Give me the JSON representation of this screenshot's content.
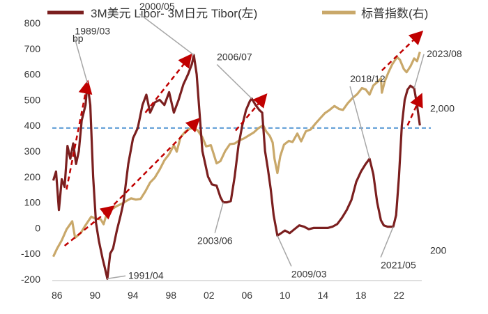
{
  "chart_data": {
    "type": "line",
    "legend": {
      "position": "top",
      "items": [
        {
          "label": "3M美元 Libor- 3M日元 Tibor(左)",
          "color": "#7b1f1f"
        },
        {
          "label": "标普指数(右)",
          "color": "#c9a86a"
        }
      ]
    },
    "left_axis": {
      "unit": "bp",
      "ticks": [
        "800",
        "700",
        "600",
        "500",
        "400",
        "300",
        "200",
        "100",
        "0",
        "-100",
        "-200"
      ],
      "range": [
        -200,
        800
      ]
    },
    "right_axis": {
      "scale": "log",
      "ticks": [
        "2,000",
        "200"
      ],
      "range": [
        125,
        8000
      ]
    },
    "x_axis": {
      "ticks": [
        "86",
        "90",
        "94",
        "98",
        "02",
        "06",
        "10",
        "14",
        "18",
        "22"
      ],
      "range": [
        1985.5,
        2024.4
      ]
    },
    "reference_line": {
      "left_value": 390,
      "color": "#5b9bd5"
    },
    "annotations": [
      {
        "label": "1989/03",
        "x": 1989.2,
        "y": 565
      },
      {
        "label": "1991/04",
        "x": 1991.3,
        "y": -198
      },
      {
        "label": "2000/05",
        "x": 2000.4,
        "y": 675
      },
      {
        "label": "2003/06",
        "x": 2003.5,
        "y": 100
      },
      {
        "label": "2006/07",
        "x": 2006.5,
        "y": 505
      },
      {
        "label": "2009/03",
        "x": 2009.2,
        "y": -30
      },
      {
        "label": "2018/12",
        "x": 2018.9,
        "y": 270
      },
      {
        "label": "2021/05",
        "x": 2021.4,
        "y": 5
      },
      {
        "label": "2023/08",
        "x": 2023.6,
        "y": 545
      }
    ],
    "series": [
      {
        "name": "3M美元 Libor- 3M日元 Tibor(左)",
        "axis": "left",
        "color": "#7b1f1f",
        "points": [
          [
            1985.6,
            185
          ],
          [
            1985.9,
            220
          ],
          [
            1986.2,
            70
          ],
          [
            1986.5,
            190
          ],
          [
            1986.8,
            160
          ],
          [
            1987.1,
            320
          ],
          [
            1987.4,
            270
          ],
          [
            1987.7,
            330
          ],
          [
            1988.0,
            250
          ],
          [
            1988.3,
            300
          ],
          [
            1988.6,
            420
          ],
          [
            1989.0,
            480
          ],
          [
            1989.2,
            565
          ],
          [
            1989.5,
            480
          ],
          [
            1989.8,
            200
          ],
          [
            1990.1,
            20
          ],
          [
            1990.4,
            -50
          ],
          [
            1990.8,
            -120
          ],
          [
            1991.0,
            -150
          ],
          [
            1991.3,
            -198
          ],
          [
            1991.6,
            -100
          ],
          [
            1991.9,
            -80
          ],
          [
            1992.3,
            -10
          ],
          [
            1992.7,
            50
          ],
          [
            1993.0,
            100
          ],
          [
            1993.5,
            250
          ],
          [
            1994.0,
            350
          ],
          [
            1994.5,
            390
          ],
          [
            1995.0,
            480
          ],
          [
            1995.4,
            520
          ],
          [
            1995.8,
            450
          ],
          [
            1996.3,
            490
          ],
          [
            1996.8,
            500
          ],
          [
            1997.3,
            480
          ],
          [
            1997.8,
            530
          ],
          [
            1998.3,
            450
          ],
          [
            1998.8,
            500
          ],
          [
            1999.3,
            560
          ],
          [
            1999.8,
            600
          ],
          [
            2000.2,
            640
          ],
          [
            2000.4,
            675
          ],
          [
            2000.7,
            600
          ],
          [
            2001.0,
            450
          ],
          [
            2001.3,
            300
          ],
          [
            2001.6,
            250
          ],
          [
            2001.9,
            200
          ],
          [
            2002.3,
            170
          ],
          [
            2002.8,
            165
          ],
          [
            2003.2,
            120
          ],
          [
            2003.5,
            100
          ],
          [
            2003.9,
            100
          ],
          [
            2004.3,
            105
          ],
          [
            2004.7,
            200
          ],
          [
            2005.1,
            320
          ],
          [
            2005.5,
            400
          ],
          [
            2005.9,
            460
          ],
          [
            2006.3,
            495
          ],
          [
            2006.5,
            505
          ],
          [
            2006.9,
            480
          ],
          [
            2007.3,
            460
          ],
          [
            2007.6,
            450
          ],
          [
            2007.9,
            300
          ],
          [
            2008.2,
            230
          ],
          [
            2008.5,
            150
          ],
          [
            2008.8,
            50
          ],
          [
            2009.2,
            -30
          ],
          [
            2009.6,
            -20
          ],
          [
            2010.0,
            -10
          ],
          [
            2010.5,
            -20
          ],
          [
            2011.0,
            -5
          ],
          [
            2011.5,
            10
          ],
          [
            2012.0,
            5
          ],
          [
            2012.5,
            -5
          ],
          [
            2013.0,
            0
          ],
          [
            2013.5,
            0
          ],
          [
            2014.0,
            0
          ],
          [
            2014.5,
            0
          ],
          [
            2015.0,
            5
          ],
          [
            2015.5,
            15
          ],
          [
            2016.0,
            40
          ],
          [
            2016.5,
            70
          ],
          [
            2017.0,
            110
          ],
          [
            2017.5,
            180
          ],
          [
            2018.0,
            220
          ],
          [
            2018.5,
            250
          ],
          [
            2018.9,
            270
          ],
          [
            2019.3,
            210
          ],
          [
            2019.7,
            100
          ],
          [
            2020.1,
            30
          ],
          [
            2020.4,
            10
          ],
          [
            2020.8,
            5
          ],
          [
            2021.1,
            5
          ],
          [
            2021.4,
            5
          ],
          [
            2021.7,
            50
          ],
          [
            2022.0,
            200
          ],
          [
            2022.3,
            400
          ],
          [
            2022.6,
            500
          ],
          [
            2022.9,
            540
          ],
          [
            2023.2,
            555
          ],
          [
            2023.6,
            545
          ],
          [
            2023.9,
            480
          ],
          [
            2024.2,
            400
          ]
        ]
      },
      {
        "name": "标普指数(右)",
        "axis": "right",
        "color": "#c9a86a",
        "points": [
          [
            1985.6,
            180
          ],
          [
            1986.0,
            205
          ],
          [
            1986.5,
            235
          ],
          [
            1987.0,
            280
          ],
          [
            1987.6,
            320
          ],
          [
            1987.9,
            245
          ],
          [
            1988.5,
            265
          ],
          [
            1989.0,
            300
          ],
          [
            1989.6,
            345
          ],
          [
            1990.0,
            335
          ],
          [
            1990.6,
            330
          ],
          [
            1990.9,
            305
          ],
          [
            1991.3,
            375
          ],
          [
            1991.8,
            390
          ],
          [
            1992.3,
            410
          ],
          [
            1992.8,
            425
          ],
          [
            1993.3,
            445
          ],
          [
            1993.8,
            465
          ],
          [
            1994.3,
            455
          ],
          [
            1994.8,
            460
          ],
          [
            1995.3,
            520
          ],
          [
            1995.8,
            600
          ],
          [
            1996.3,
            650
          ],
          [
            1996.8,
            740
          ],
          [
            1997.3,
            860
          ],
          [
            1997.8,
            950
          ],
          [
            1998.3,
            1100
          ],
          [
            1998.6,
            990
          ],
          [
            1999.0,
            1250
          ],
          [
            1999.5,
            1370
          ],
          [
            2000.0,
            1440
          ],
          [
            2000.4,
            1450
          ],
          [
            2000.8,
            1400
          ],
          [
            2001.3,
            1250
          ],
          [
            2001.7,
            1080
          ],
          [
            2002.2,
            1100
          ],
          [
            2002.5,
            950
          ],
          [
            2002.8,
            820
          ],
          [
            2003.2,
            850
          ],
          [
            2003.7,
            1000
          ],
          [
            2004.2,
            1120
          ],
          [
            2004.7,
            1130
          ],
          [
            2005.2,
            1190
          ],
          [
            2005.7,
            1230
          ],
          [
            2006.2,
            1290
          ],
          [
            2006.7,
            1350
          ],
          [
            2007.2,
            1450
          ],
          [
            2007.7,
            1520
          ],
          [
            2008.0,
            1380
          ],
          [
            2008.4,
            1280
          ],
          [
            2008.7,
            1150
          ],
          [
            2008.9,
            880
          ],
          [
            2009.2,
            700
          ],
          [
            2009.5,
            920
          ],
          [
            2009.9,
            1110
          ],
          [
            2010.4,
            1180
          ],
          [
            2010.8,
            1160
          ],
          [
            2011.3,
            1330
          ],
          [
            2011.7,
            1170
          ],
          [
            2012.2,
            1380
          ],
          [
            2012.7,
            1420
          ],
          [
            2013.2,
            1560
          ],
          [
            2013.7,
            1700
          ],
          [
            2014.2,
            1850
          ],
          [
            2014.7,
            1950
          ],
          [
            2015.2,
            2080
          ],
          [
            2015.7,
            1980
          ],
          [
            2016.1,
            1950
          ],
          [
            2016.6,
            2170
          ],
          [
            2017.1,
            2360
          ],
          [
            2017.6,
            2520
          ],
          [
            2018.1,
            2780
          ],
          [
            2018.5,
            2720
          ],
          [
            2018.9,
            2500
          ],
          [
            2019.3,
            2900
          ],
          [
            2019.8,
            3100
          ],
          [
            2020.1,
            3250
          ],
          [
            2020.2,
            2580
          ],
          [
            2020.5,
            3100
          ],
          [
            2020.9,
            3600
          ],
          [
            2021.3,
            4100
          ],
          [
            2021.8,
            4600
          ],
          [
            2022.1,
            4400
          ],
          [
            2022.5,
            3800
          ],
          [
            2022.8,
            3600
          ],
          [
            2023.2,
            3950
          ],
          [
            2023.6,
            4500
          ],
          [
            2023.9,
            4300
          ],
          [
            2024.2,
            5000
          ]
        ]
      }
    ],
    "trend_arrows": [
      {
        "from": [
          1987.0,
          150
        ],
        "to": [
          1989.2,
          565
        ],
        "axis": "left"
      },
      {
        "from": [
          1986.8,
          215
        ],
        "to": [
          1991.8,
          400
        ],
        "axis": "right"
      },
      {
        "from": [
          1995.3,
          450
        ],
        "to": [
          2000.0,
          670
        ],
        "axis": "left"
      },
      {
        "from": [
          1992.0,
          420
        ],
        "to": [
          2000.8,
          1650
        ],
        "axis": "right"
      },
      {
        "from": [
          2004.8,
          380
        ],
        "to": [
          2007.9,
          515
        ],
        "axis": "left"
      },
      {
        "from": [
          2022.9,
          400
        ],
        "to": [
          2024.3,
          515
        ],
        "axis": "left"
      },
      {
        "from": [
          2020.2,
          3700
        ],
        "to": [
          2024.3,
          6800
        ],
        "axis": "right"
      }
    ]
  }
}
